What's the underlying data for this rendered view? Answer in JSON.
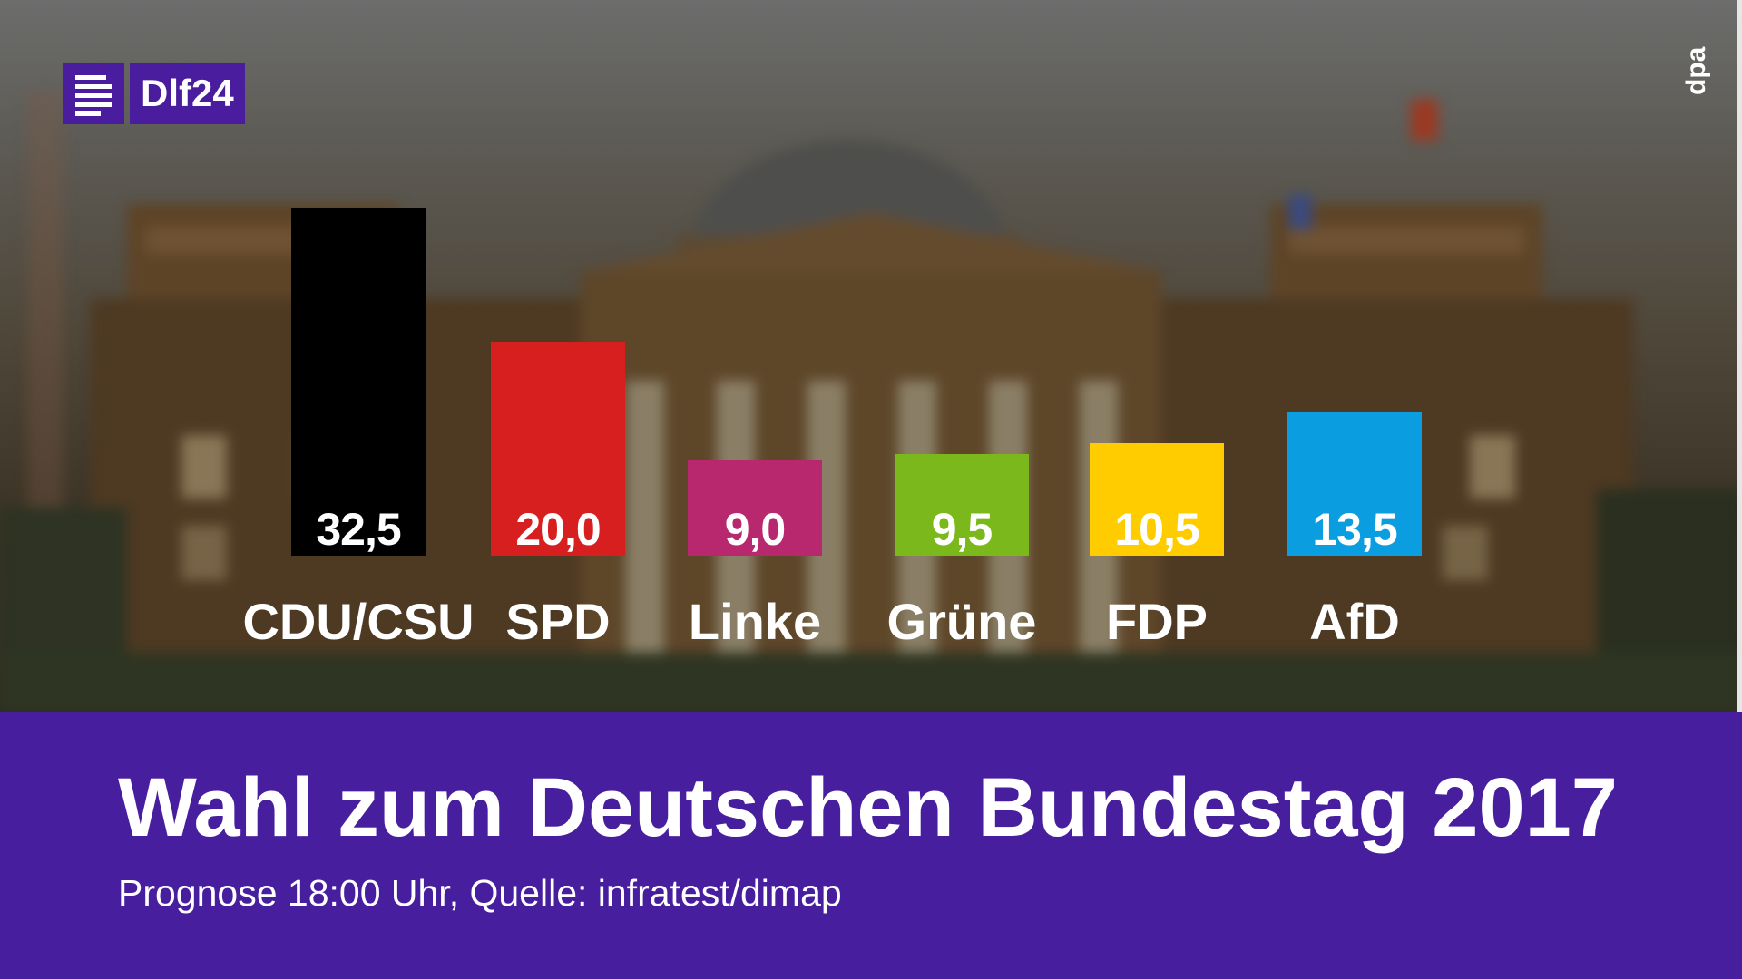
{
  "logo": {
    "text": "Dlf24"
  },
  "photo_credit": "dpa",
  "chart_data": {
    "type": "bar",
    "categories": [
      "CDU/CSU",
      "SPD",
      "Linke",
      "Grüne",
      "FDP",
      "AfD"
    ],
    "values": [
      32.5,
      20.0,
      9.0,
      9.5,
      10.5,
      13.5
    ],
    "value_labels": [
      "32,5",
      "20,0",
      "9,0",
      "9,5",
      "10,5",
      "13,5"
    ],
    "colors": [
      "#000000",
      "#d71f1f",
      "#b8286f",
      "#7ab81c",
      "#ffcc00",
      "#0a9de0"
    ],
    "title": "Wahl zum Deutschen Bundestag 2017",
    "subtitle": "Prognose 18:00 Uhr, Quelle: infratest/dimap",
    "grid": false,
    "legend": "none"
  },
  "colors": {
    "accent": "#471e9d",
    "text": "#ffffff"
  }
}
